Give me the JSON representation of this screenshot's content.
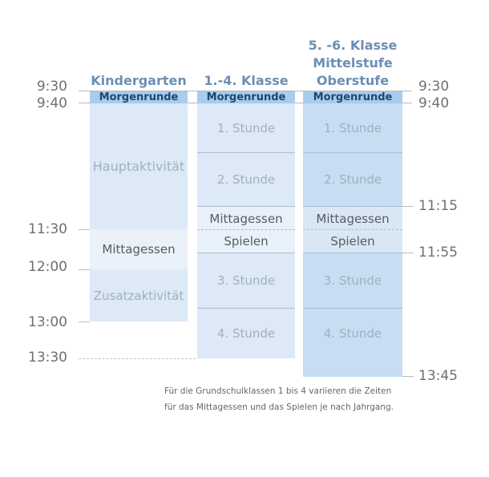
{
  "columns": {
    "kindergarten": {
      "title": "Kindergarten",
      "morning": "Morgenrunde",
      "main_activity": "Hauptaktivität",
      "lunch": "Mittagessen",
      "extra_activity": "Zusatzaktivität"
    },
    "grades_1_4": {
      "title": "1.-4. Klasse",
      "morning": "Morgenrunde",
      "lesson1": "1. Stunde",
      "lesson2": "2. Stunde",
      "lunch": "Mittagessen",
      "play": "Spielen",
      "lesson3": "3. Stunde",
      "lesson4": "4. Stunde"
    },
    "grades_5_6": {
      "title_line1": "5. -6. Klasse",
      "title_line2": "Mittelstufe",
      "title_line3": "Oberstufe",
      "morning": "Morgenrunde",
      "lesson1": "1. Stunde",
      "lesson2": "2. Stunde",
      "lunch": "Mittagessen",
      "play": "Spielen",
      "lesson3": "3. Stunde",
      "lesson4": "4. Stunde"
    }
  },
  "times_left": {
    "t0930": "9:30",
    "t0940": "9:40",
    "t1130": "11:30",
    "t1200": "12:00",
    "t1300": "13:00",
    "t1330": "13:30"
  },
  "times_right": {
    "t0930": "9:30",
    "t0940": "9:40",
    "t1115": "11:15",
    "t1155": "11:55",
    "t1345": "13:45"
  },
  "note": {
    "line1": "Für die Grundschulklassen 1 bis 4 variieren die Zeiten",
    "line2": "für das Mittagessen und das Spielen je nach Jahrgang."
  },
  "colors": {
    "title": "#6b8fb4",
    "morning_bg": "#a8ccec",
    "column_light": "#dde9f6",
    "column_medium": "#c7ddf2"
  }
}
